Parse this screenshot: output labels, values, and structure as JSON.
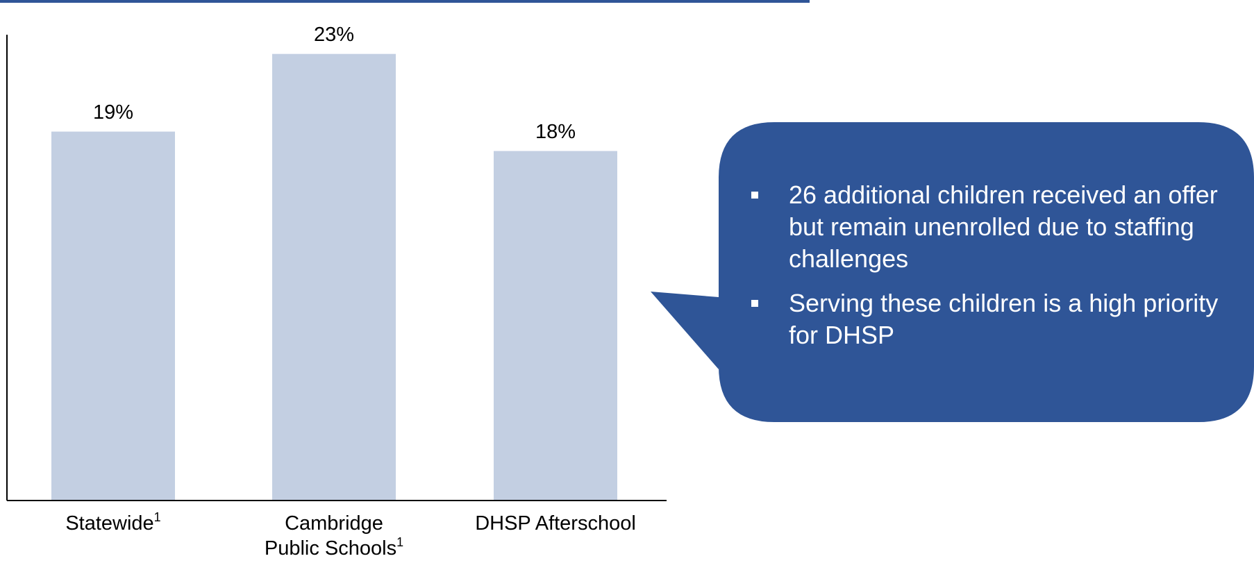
{
  "chart_data": {
    "type": "bar",
    "categories": [
      {
        "text": "Statewide",
        "sup": "1",
        "lines": [
          "Statewide"
        ]
      },
      {
        "text": "Cambridge Public Schools",
        "sup": "1",
        "lines": [
          "Cambridge",
          "Public Schools"
        ]
      },
      {
        "text": "DHSP Afterschool",
        "sup": "",
        "lines": [
          "DHSP Afterschool"
        ]
      }
    ],
    "values": [
      19,
      23,
      18
    ],
    "data_labels": [
      "19%",
      "23%",
      "18%"
    ],
    "ylim": [
      0,
      25
    ],
    "grid": false,
    "legend": "none",
    "bar_color": "#c3cfe2",
    "axis_color": "#000000"
  },
  "callout": {
    "fill": "#2f5597",
    "bullets": [
      "26 additional children received an offer but remain unenrolled due to staffing challenges",
      "Serving these children is a high priority for DHSP"
    ]
  },
  "colors": {
    "top_rule": "#2f5597"
  }
}
